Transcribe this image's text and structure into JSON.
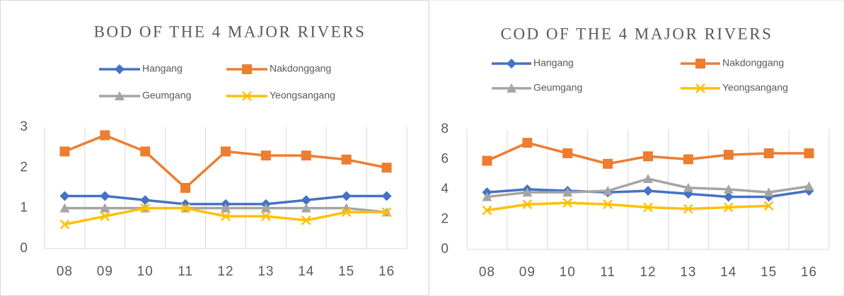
{
  "chart_data": [
    {
      "type": "line",
      "title": "BOD OF THE 4 MAJOR RIVERS",
      "categories": [
        "08",
        "09",
        "10",
        "11",
        "12",
        "13",
        "14",
        "15",
        "16"
      ],
      "ylim": [
        0,
        3
      ],
      "yticks": [
        0,
        1,
        2,
        3
      ],
      "series": [
        {
          "name": "Hangang",
          "color": "#4472c4",
          "marker": "diamond",
          "values": [
            1.3,
            1.3,
            1.2,
            1.1,
            1.1,
            1.1,
            1.2,
            1.3,
            1.3
          ]
        },
        {
          "name": "Nakdonggang",
          "color": "#ed7d31",
          "marker": "square",
          "values": [
            2.4,
            2.8,
            2.4,
            1.5,
            2.4,
            2.3,
            2.3,
            2.2,
            2.0
          ]
        },
        {
          "name": "Geumgang",
          "color": "#a5a5a5",
          "marker": "triangle",
          "values": [
            1.0,
            1.0,
            1.0,
            1.0,
            1.0,
            1.0,
            1.0,
            1.0,
            0.9
          ]
        },
        {
          "name": "Yeongsangang",
          "color": "#ffc000",
          "marker": "x",
          "values": [
            0.6,
            0.8,
            1.0,
            1.0,
            0.8,
            0.8,
            0.7,
            0.9,
            0.9
          ]
        }
      ]
    },
    {
      "type": "line",
      "title": "COD OF THE 4 MAJOR RIVERS",
      "categories": [
        "08",
        "09",
        "10",
        "11",
        "12",
        "13",
        "14",
        "15",
        "16"
      ],
      "ylim": [
        0,
        8
      ],
      "yticks": [
        0,
        2,
        4,
        6,
        8
      ],
      "series": [
        {
          "name": "Hangang",
          "color": "#4472c4",
          "marker": "diamond",
          "values": [
            3.8,
            4.0,
            3.9,
            3.8,
            3.9,
            3.7,
            3.5,
            3.5,
            3.9
          ]
        },
        {
          "name": "Nakdonggang",
          "color": "#ed7d31",
          "marker": "square",
          "values": [
            5.9,
            7.1,
            6.4,
            5.7,
            6.2,
            6.0,
            6.3,
            6.4,
            6.4
          ]
        },
        {
          "name": "Geumgang",
          "color": "#a5a5a5",
          "marker": "triangle",
          "values": [
            3.5,
            3.8,
            3.8,
            3.9,
            4.7,
            4.1,
            4.0,
            3.8,
            4.2
          ]
        },
        {
          "name": "Yeongsangang",
          "color": "#ffc000",
          "marker": "x",
          "values": [
            2.6,
            3.0,
            3.1,
            3.0,
            2.8,
            2.7,
            2.8,
            2.9,
            null
          ]
        }
      ]
    }
  ]
}
